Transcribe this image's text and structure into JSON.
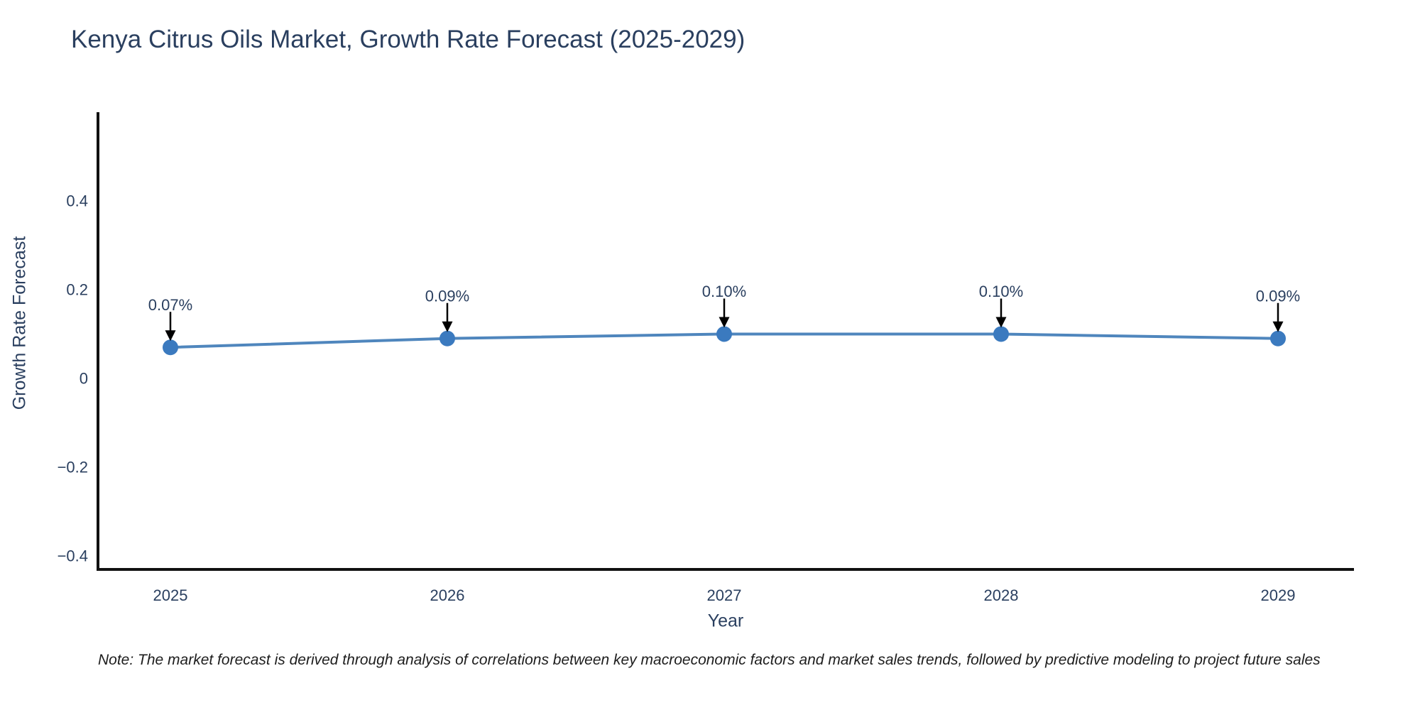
{
  "title": "Kenya Citrus Oils Market, Growth Rate Forecast (2025-2029)",
  "note": "Note: The market forecast is derived through analysis of correlations between key macroeconomic factors and market sales trends, followed by predictive modeling to project future sales",
  "chart_data": {
    "type": "line",
    "title": "Kenya Citrus Oils Market, Growth Rate Forecast (2025-2029)",
    "xlabel": "Year",
    "ylabel": "Growth Rate Forecast",
    "x": [
      2025,
      2026,
      2027,
      2028,
      2029
    ],
    "x_tick_labels": [
      "2025",
      "2026",
      "2027",
      "2028",
      "2029"
    ],
    "values": [
      0.07,
      0.09,
      0.1,
      0.1,
      0.09
    ],
    "point_labels": [
      "0.07%",
      "0.09%",
      "0.10%",
      "0.10%",
      "0.09%"
    ],
    "yticks": [
      0.4,
      0.2,
      0,
      -0.2,
      -0.4
    ],
    "ytick_labels": [
      "0.4",
      "0.2",
      "0",
      "−0.2",
      "−0.4"
    ],
    "ylim": [
      -0.43,
      0.6
    ],
    "xlim": [
      2024.74,
      2029.27
    ],
    "grid": false,
    "legend_position": "none",
    "marker_style": "circle",
    "annotation_arrows": true,
    "colors": {
      "line": "#4f86bd",
      "marker": "#3b7abf",
      "axis": "#111111",
      "tick_text": "#2a3f5f",
      "annotation_text": "#2a3f5f",
      "annotation_arrow": "#000000",
      "background": "#ffffff"
    }
  }
}
